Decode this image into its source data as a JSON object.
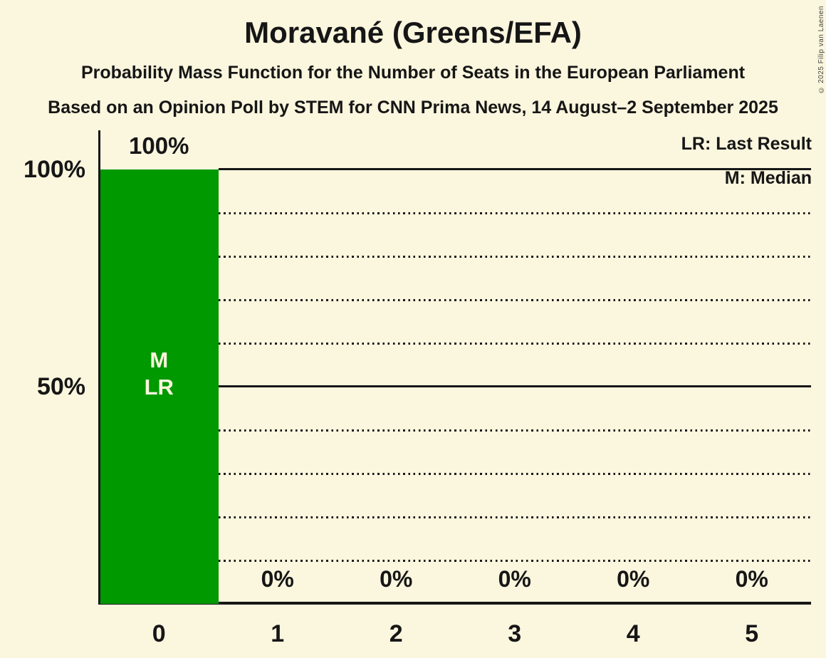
{
  "page": {
    "copyright": "© 2025 Filip van Laenen"
  },
  "chart_data": {
    "type": "bar",
    "title": "Moravané (Greens/EFA)",
    "subtitle": "Probability Mass Function for the Number of Seats in the European Parliament",
    "source": "Based on an Opinion Poll by STEM for CNN Prima News, 14 August–2 September 2025",
    "categories": [
      "0",
      "1",
      "2",
      "3",
      "4",
      "5"
    ],
    "values": [
      100,
      0,
      0,
      0,
      0,
      0
    ],
    "bar_value_labels": [
      "100%",
      "0%",
      "0%",
      "0%",
      "0%",
      "0%"
    ],
    "bar_annotations": [
      [
        "M",
        "LR"
      ],
      [],
      [],
      [],
      [],
      []
    ],
    "median_seats": "0",
    "last_result_seats": "0",
    "ylim": [
      0,
      100
    ],
    "y_ticks": [
      {
        "pct": 100,
        "label": "100%"
      },
      {
        "pct": 50,
        "label": "50%"
      }
    ],
    "grid_dotted_pct": [
      10,
      20,
      30,
      40,
      60,
      70,
      80,
      90
    ],
    "grid": "horizontal dotted, solid at labeled ticks",
    "legend_position": "top-right",
    "legend": [
      {
        "key": "LR",
        "label": "LR: Last Result"
      },
      {
        "key": "M",
        "label": "M: Median"
      }
    ],
    "colors": {
      "bar": "#009900",
      "background": "#FBF6DE",
      "text": "#161616",
      "bar_label": "#FBF6DE"
    }
  }
}
